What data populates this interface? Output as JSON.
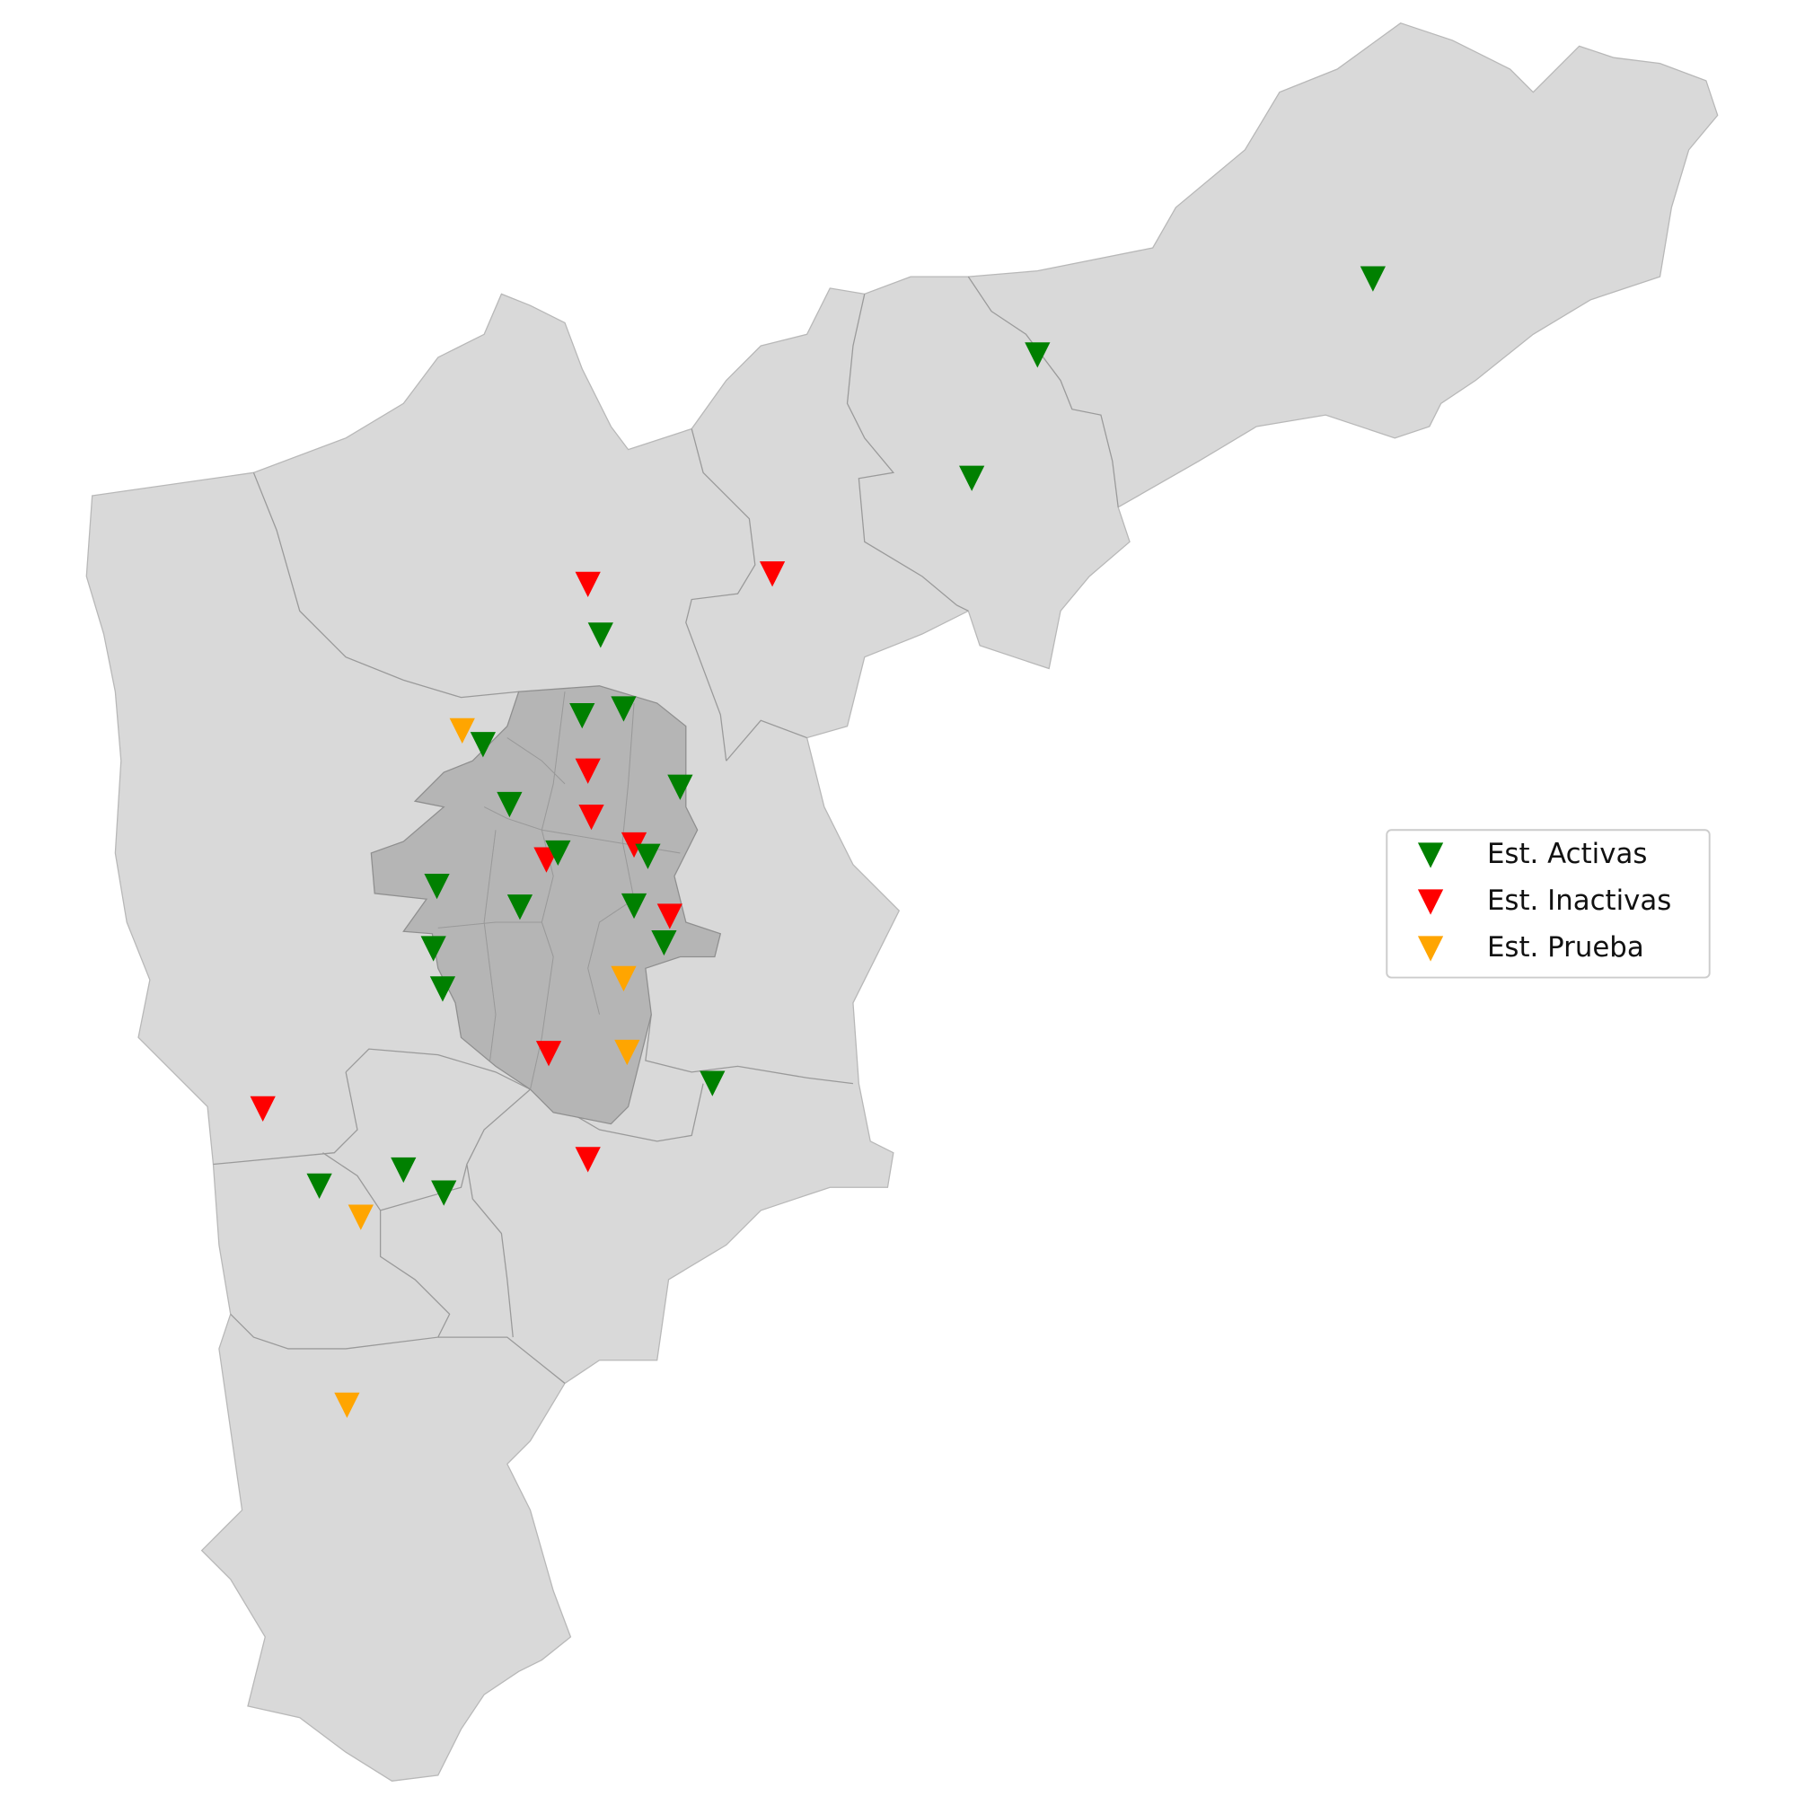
{
  "legend": {
    "items": [
      {
        "name": "Est. Activas",
        "color": "#008000"
      },
      {
        "name": "Est. Inactivas",
        "color": "#ff0000"
      },
      {
        "name": "Est. Prueba",
        "color": "#ffa500"
      }
    ]
  }
}
